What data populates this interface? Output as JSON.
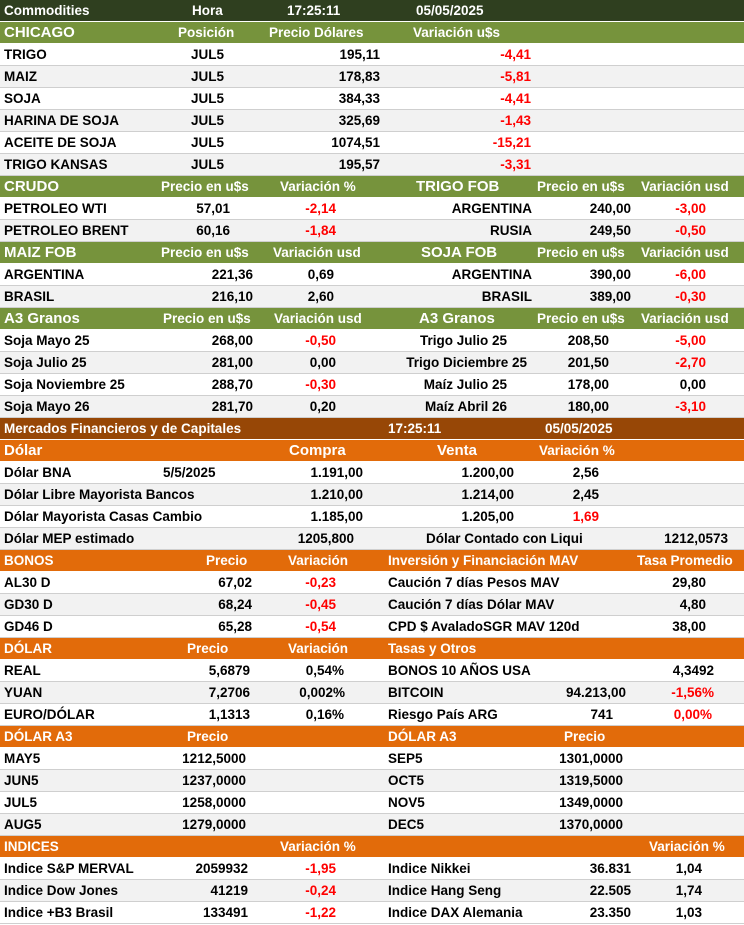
{
  "top": {
    "title": "Commodities",
    "hora_label": "Hora",
    "time": "17:25:11",
    "date": "05/05/2025"
  },
  "chicago": {
    "title": "CHICAGO",
    "col_pos": "Posición",
    "col_price": "Precio Dólares",
    "col_var": "Variación u$s",
    "rows": [
      {
        "name": "TRIGO",
        "pos": "JUL5",
        "price": "195,11",
        "var": "-4,41"
      },
      {
        "name": "MAIZ",
        "pos": "JUL5",
        "price": "178,83",
        "var": "-5,81"
      },
      {
        "name": "SOJA",
        "pos": "JUL5",
        "price": "384,33",
        "var": "-4,41"
      },
      {
        "name": "HARINA DE SOJA",
        "pos": "JUL5",
        "price": "325,69",
        "var": "-1,43"
      },
      {
        "name": "ACEITE DE SOJA",
        "pos": "JUL5",
        "price": "1074,51",
        "var": "-15,21"
      },
      {
        "name": "TRIGO KANSAS",
        "pos": "JUL5",
        "price": "195,57",
        "var": "-3,31"
      }
    ]
  },
  "crudo": {
    "title": "CRUDO",
    "col_price": "Precio en u$s",
    "col_var": "Variación %",
    "rows": [
      {
        "name": "PETROLEO WTI",
        "price": "57,01",
        "var": "-2,14"
      },
      {
        "name": "PETROLEO BRENT",
        "price": "60,16",
        "var": "-1,84"
      }
    ]
  },
  "trigo_fob": {
    "title": "TRIGO FOB",
    "col_price": "Precio en u$s",
    "col_var": "Variación usd",
    "rows": [
      {
        "name": "ARGENTINA",
        "price": "240,00",
        "var": "-3,00"
      },
      {
        "name": "RUSIA",
        "price": "249,50",
        "var": "-0,50"
      }
    ]
  },
  "maiz_fob": {
    "title": "MAIZ FOB",
    "col_price": "Precio en u$s",
    "col_var": "Variación usd",
    "rows": [
      {
        "name": "ARGENTINA",
        "price": "221,36",
        "var": "0,69"
      },
      {
        "name": "BRASIL",
        "price": "216,10",
        "var": "2,60"
      }
    ]
  },
  "soja_fob": {
    "title": "SOJA FOB",
    "col_price": "Precio en u$s",
    "col_var": "Variación usd",
    "rows": [
      {
        "name": "ARGENTINA",
        "price": "390,00",
        "var": "-6,00"
      },
      {
        "name": "BRASIL",
        "price": "389,00",
        "var": "-0,30"
      }
    ]
  },
  "a3_left": {
    "title": "A3 Granos",
    "col_price": "Precio en u$s",
    "col_var": "Variación usd",
    "rows": [
      {
        "name": "Soja Mayo 25",
        "price": "268,00",
        "var": "-0,50"
      },
      {
        "name": "Soja Julio 25",
        "price": "281,00",
        "var": "0,00"
      },
      {
        "name": "Soja Noviembre 25",
        "price": "288,70",
        "var": "-0,30"
      },
      {
        "name": "Soja Mayo 26",
        "price": "281,70",
        "var": "0,20"
      }
    ]
  },
  "a3_right": {
    "title": "A3 Granos",
    "col_price": "Precio en u$s",
    "col_var": "Variación usd",
    "rows": [
      {
        "name": "Trigo Julio 25",
        "price": "208,50",
        "var": "-5,00"
      },
      {
        "name": "Trigo Diciembre 25",
        "price": "201,50",
        "var": "-2,70"
      },
      {
        "name": "Maíz Julio 25",
        "price": "178,00",
        "var": "0,00"
      },
      {
        "name": "Maíz Abril 26",
        "price": "180,00",
        "var": "-3,10"
      }
    ]
  },
  "mercados": {
    "title": "Mercados Financieros y de Capitales",
    "time": "17:25:11",
    "date": "05/05/2025"
  },
  "dolar": {
    "title": "Dólar",
    "col_buy": "Compra",
    "col_sell": "Venta",
    "col_var": "Variación %",
    "rows": [
      {
        "name": "Dólar BNA",
        "date": "5/5/2025",
        "buy": "1.191,00",
        "sell": "1.200,00",
        "var": "2,56"
      },
      {
        "name": "Dólar Libre Mayorista Bancos",
        "buy": "1.210,00",
        "sell": "1.214,00",
        "var": "2,45"
      },
      {
        "name": "Dólar Mayorista Casas Cambio",
        "buy": "1.185,00",
        "sell": "1.205,00",
        "var": "1,69"
      }
    ],
    "mep_label": "Dólar MEP estimado",
    "mep_value": "1205,800",
    "ccl_label": "Dólar Contado con Liqui",
    "ccl_value": "1212,0573"
  },
  "bonos": {
    "title": "BONOS",
    "col_price": "Precio",
    "col_var": "Variación",
    "rows": [
      {
        "name": "AL30 D",
        "price": "67,02",
        "var": "-0,23"
      },
      {
        "name": "GD30 D",
        "price": "68,24",
        "var": "-0,45"
      },
      {
        "name": "GD46 D",
        "price": "65,28",
        "var": "-0,54"
      }
    ]
  },
  "mav": {
    "title": "Inversión y Financiación MAV",
    "col_rate": "Tasa Promedio",
    "rows": [
      {
        "name": "Caución 7 días Pesos MAV",
        "rate": "29,80"
      },
      {
        "name": "Caución 7 días Dólar MAV",
        "rate": "4,80"
      },
      {
        "name": "CPD $ AvaladoSGR  MAV 120d",
        "rate": "38,00"
      }
    ]
  },
  "dolar_fx": {
    "title": "DÓLAR",
    "col_price": "Precio",
    "col_var": "Variación",
    "rows": [
      {
        "name": "REAL",
        "price": "5,6879",
        "var": "0,54%"
      },
      {
        "name": "YUAN",
        "price": "7,2706",
        "var": "0,002%"
      },
      {
        "name": "EURO/DÓLAR",
        "price": "1,1313",
        "var": "0,16%"
      }
    ]
  },
  "tasas": {
    "title": "Tasas y Otros",
    "bonos10": {
      "name": "BONOS 10 AÑOS USA",
      "value": "4,3492"
    },
    "bitcoin": {
      "name": "BITCOIN",
      "price": "94.213,00",
      "var": "-1,56%"
    },
    "riesgo": {
      "name": "Riesgo País ARG",
      "value": "741",
      "var": "0,00%"
    }
  },
  "dolar_a3_left": {
    "title": "DÓLAR A3",
    "col_price": "Precio",
    "rows": [
      {
        "name": "MAY5",
        "price": "1212,5000"
      },
      {
        "name": "JUN5",
        "price": "1237,0000"
      },
      {
        "name": "JUL5",
        "price": "1258,0000"
      },
      {
        "name": "AUG5",
        "price": "1279,0000"
      }
    ]
  },
  "dolar_a3_right": {
    "title": "DÓLAR A3",
    "col_price": "Precio",
    "rows": [
      {
        "name": "SEP5",
        "price": "1301,0000"
      },
      {
        "name": "OCT5",
        "price": "1319,5000"
      },
      {
        "name": "NOV5",
        "price": "1349,0000"
      },
      {
        "name": "DEC5",
        "price": "1370,0000"
      }
    ]
  },
  "indices": {
    "title": "INDICES",
    "col_var_left": "Variación %",
    "col_var_right": "Variación %",
    "left": [
      {
        "name": "Indice S&P MERVAL",
        "value": "2059932",
        "var": "-1,95"
      },
      {
        "name": "Indice Dow Jones",
        "value": "41219",
        "var": "-0,24"
      },
      {
        "name": "Indice +B3 Brasil",
        "value": "133491",
        "var": "-1,22"
      }
    ],
    "right": [
      {
        "name": "Indice Nikkei",
        "value": "36.831",
        "var": "1,04"
      },
      {
        "name": "Indice Hang Seng",
        "value": "22.505",
        "var": "1,74"
      },
      {
        "name": "Indice DAX Alemania",
        "value": "23.350",
        "var": "1,03"
      }
    ]
  }
}
